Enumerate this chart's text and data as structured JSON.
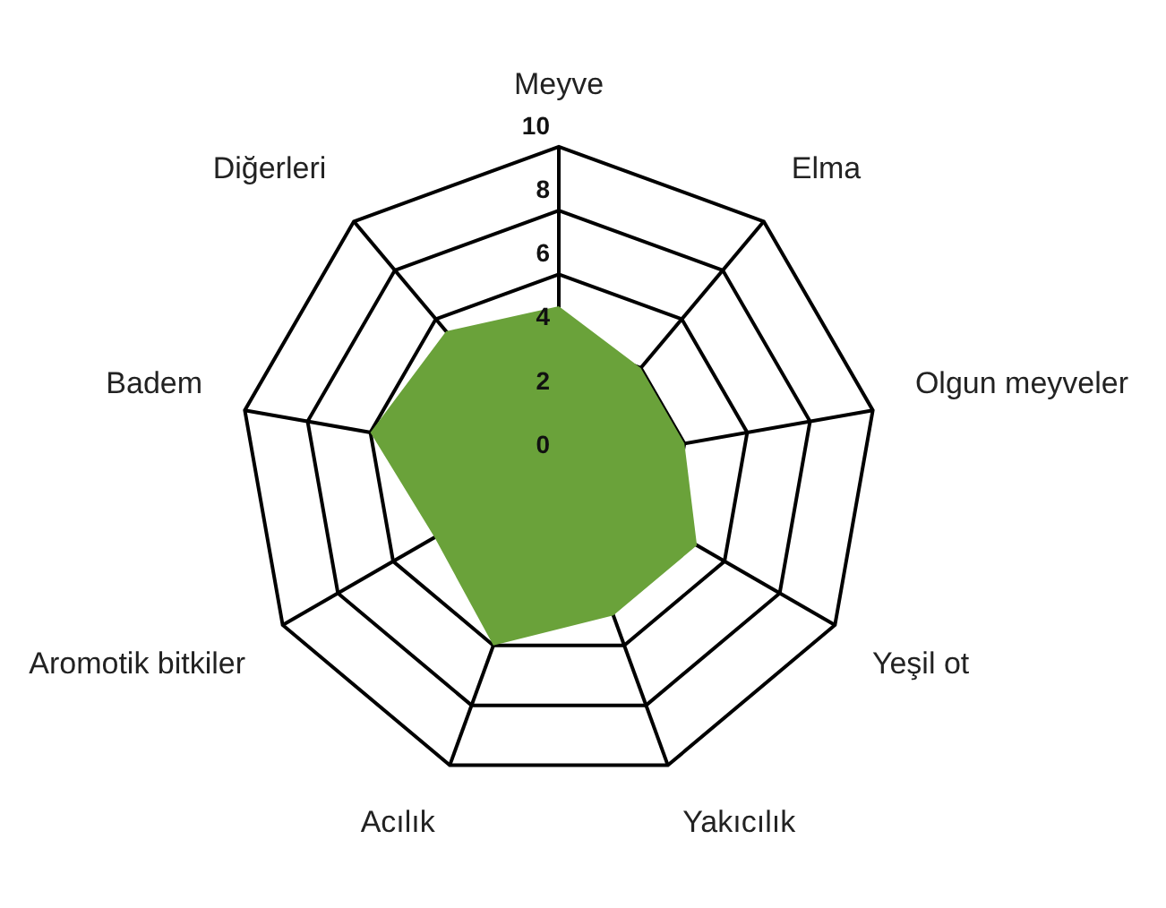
{
  "chart_data": {
    "type": "radar",
    "categories": [
      "Meyve",
      "Elma",
      "Olgun meyveler",
      "Yeşil ot",
      "Yakıcılık",
      "Acılık",
      "Aromotik bitkiler",
      "Badem",
      "Diğerleri"
    ],
    "series": [
      {
        "color": "#6aa23a",
        "values": [
          5,
          4,
          4,
          5,
          5,
          6,
          4.5,
          6,
          5.5
        ]
      }
    ],
    "ylim": [
      0,
      10
    ],
    "yticks": [
      0,
      2,
      4,
      6,
      8,
      10
    ],
    "grid": true,
    "legend": false,
    "marker": "none"
  }
}
